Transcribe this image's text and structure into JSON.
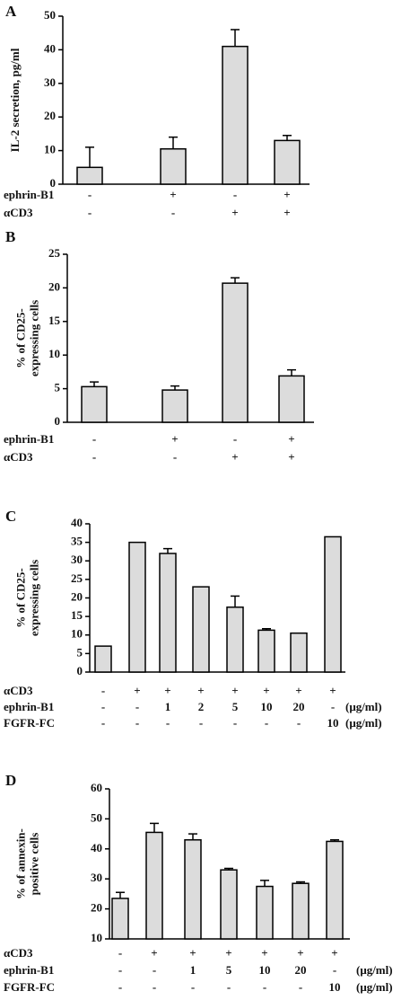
{
  "chart_data": [
    {
      "type": "bar",
      "panel": "A",
      "ylabel": [
        "IL-2 secretion, pg/ml"
      ],
      "values": [
        5,
        10.5,
        41,
        13
      ],
      "errors": [
        6,
        3.5,
        5,
        1.5
      ],
      "ylim": [
        0,
        50
      ],
      "yticks": [
        0,
        10,
        20,
        30,
        40,
        50
      ],
      "color": "#dcdcdc",
      "conditions": [
        {
          "name": "ephrin-B1",
          "values": [
            "-",
            "+",
            "-",
            "+"
          ]
        },
        {
          "name": "αCD3",
          "values": [
            "-",
            "-",
            "+",
            "+"
          ]
        }
      ]
    },
    {
      "type": "bar",
      "panel": "B",
      "ylabel": [
        "% of CD25-",
        "expressing cells"
      ],
      "values": [
        5.3,
        4.8,
        20.7,
        6.9
      ],
      "errors": [
        0.7,
        0.6,
        0.8,
        0.9
      ],
      "ylim": [
        0,
        25
      ],
      "yticks": [
        0,
        5,
        10,
        15,
        20,
        25
      ],
      "color": "#dcdcdc",
      "conditions": [
        {
          "name": "ephrin-B1",
          "values": [
            "-",
            "+",
            "-",
            "+"
          ]
        },
        {
          "name": "αCD3",
          "values": [
            "-",
            "-",
            "+",
            "+"
          ]
        }
      ]
    },
    {
      "type": "bar",
      "panel": "C",
      "ylabel": [
        "% of CD25-",
        "expressing cells"
      ],
      "values": [
        7,
        35,
        32,
        23,
        17.5,
        11.3,
        10.5,
        36.5
      ],
      "errors": [
        null,
        null,
        1.3,
        null,
        3,
        0.4,
        null,
        null
      ],
      "ylim": [
        0,
        40
      ],
      "yticks": [
        0,
        5,
        10,
        15,
        20,
        25,
        30,
        35,
        40
      ],
      "color": "#dcdcdc",
      "conditions": [
        {
          "name": "αCD3",
          "values": [
            "-",
            "+",
            "+",
            "+",
            "+",
            "+",
            "+",
            "+"
          ]
        },
        {
          "name": "ephrin-B1",
          "values": [
            "-",
            "-",
            "1",
            "2",
            "5",
            "10",
            "20",
            "-"
          ],
          "unit": "(μg/ml)"
        },
        {
          "name": "FGFR-FC",
          "values": [
            "-",
            "-",
            "-",
            "-",
            "-",
            "-",
            "-",
            "10"
          ],
          "unit": "(μg/ml)"
        }
      ]
    },
    {
      "type": "bar",
      "panel": "D",
      "ylabel": [
        "% of annexin-",
        "positive cells"
      ],
      "values": [
        23.5,
        45.5,
        43,
        33,
        27.5,
        28.5,
        42.5
      ],
      "errors": [
        2,
        3,
        2,
        0.5,
        2,
        0.5,
        0.5
      ],
      "ylim": [
        10,
        60
      ],
      "yticks": [
        10,
        20,
        30,
        40,
        50,
        60
      ],
      "color": "#dcdcdc",
      "conditions": [
        {
          "name": "αCD3",
          "values": [
            "-",
            "+",
            "+",
            "+",
            "+",
            "+",
            "+"
          ]
        },
        {
          "name": "ephrin-B1",
          "values": [
            "-",
            "-",
            "1",
            "5",
            "10",
            "20",
            "-"
          ],
          "unit": "(μg/ml)"
        },
        {
          "name": "FGFR-FC",
          "values": [
            "-",
            "-",
            "-",
            "-",
            "-",
            "-",
            "10"
          ],
          "unit": "(μg/ml)"
        }
      ]
    }
  ]
}
